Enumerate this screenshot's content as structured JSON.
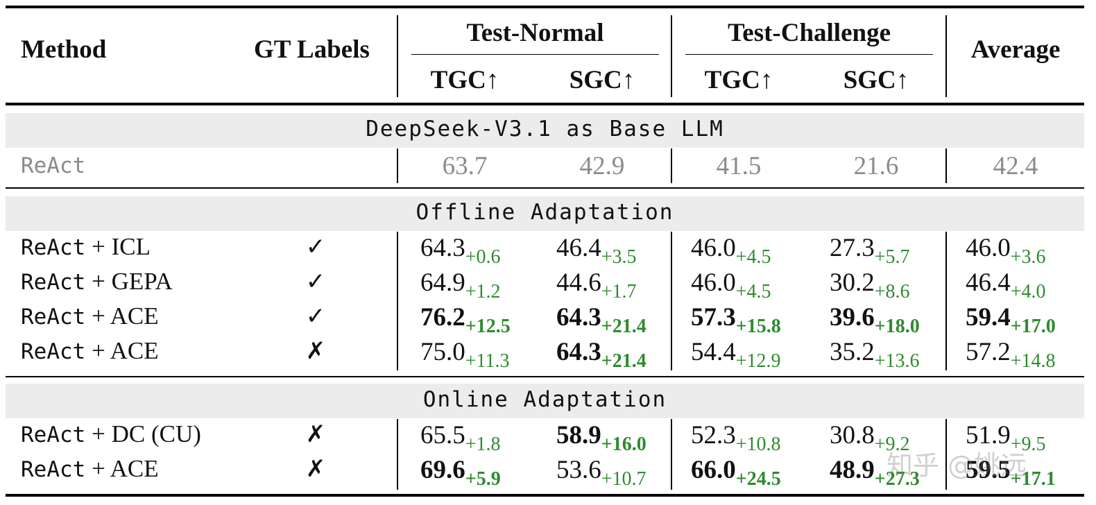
{
  "header": {
    "method": "Method",
    "gt_labels": "GT Labels",
    "test_normal": "Test-Normal",
    "test_challenge": "Test-Challenge",
    "average": "Average",
    "tgc": "TGC↑",
    "sgc": "SGC↑"
  },
  "sections": {
    "base": "DeepSeek-V3.1 as Base LLM",
    "offline": "Offline Adaptation",
    "online": "Online Adaptation"
  },
  "baseline": {
    "method": "ReAct",
    "values": [
      "63.7",
      "42.9",
      "41.5",
      "21.6",
      "42.4"
    ]
  },
  "offline_rows": [
    {
      "method_code": "ReAct",
      "method_rest": " + ICL",
      "gt": "✓",
      "cells": [
        {
          "v": "64.3",
          "d": "+0.6",
          "b": false
        },
        {
          "v": "46.4",
          "d": "+3.5",
          "b": false
        },
        {
          "v": "46.0",
          "d": "+4.5",
          "b": false
        },
        {
          "v": "27.3",
          "d": "+5.7",
          "b": false
        },
        {
          "v": "46.0",
          "d": "+3.6",
          "b": false
        }
      ]
    },
    {
      "method_code": "ReAct",
      "method_rest": " + GEPA",
      "gt": "✓",
      "cells": [
        {
          "v": "64.9",
          "d": "+1.2",
          "b": false
        },
        {
          "v": "44.6",
          "d": "+1.7",
          "b": false
        },
        {
          "v": "46.0",
          "d": "+4.5",
          "b": false
        },
        {
          "v": "30.2",
          "d": "+8.6",
          "b": false
        },
        {
          "v": "46.4",
          "d": "+4.0",
          "b": false
        }
      ]
    },
    {
      "method_code": "ReAct",
      "method_rest": " + ACE",
      "gt": "✓",
      "cells": [
        {
          "v": "76.2",
          "d": "+12.5",
          "b": true
        },
        {
          "v": "64.3",
          "d": "+21.4",
          "b": true
        },
        {
          "v": "57.3",
          "d": "+15.8",
          "b": true
        },
        {
          "v": "39.6",
          "d": "+18.0",
          "b": true
        },
        {
          "v": "59.4",
          "d": "+17.0",
          "b": true
        }
      ]
    },
    {
      "method_code": "ReAct",
      "method_rest": " + ACE",
      "gt": "✗",
      "cells": [
        {
          "v": "75.0",
          "d": "+11.3",
          "b": false
        },
        {
          "v": "64.3",
          "d": "+21.4",
          "b": true
        },
        {
          "v": "54.4",
          "d": "+12.9",
          "b": false
        },
        {
          "v": "35.2",
          "d": "+13.6",
          "b": false
        },
        {
          "v": "57.2",
          "d": "+14.8",
          "b": false
        }
      ]
    }
  ],
  "online_rows": [
    {
      "method_code": "ReAct",
      "method_rest": " + DC (CU)",
      "gt": "✗",
      "cells": [
        {
          "v": "65.5",
          "d": "+1.8",
          "b": false
        },
        {
          "v": "58.9",
          "d": "+16.0",
          "b": true
        },
        {
          "v": "52.3",
          "d": "+10.8",
          "b": false
        },
        {
          "v": "30.8",
          "d": "+9.2",
          "b": false
        },
        {
          "v": "51.9",
          "d": "+9.5",
          "b": false
        }
      ]
    },
    {
      "method_code": "ReAct",
      "method_rest": " + ACE",
      "gt": "✗",
      "cells": [
        {
          "v": "69.6",
          "d": "+5.9",
          "b": true
        },
        {
          "v": "53.6",
          "d": "+10.7",
          "b": false
        },
        {
          "v": "66.0",
          "d": "+24.5",
          "b": true
        },
        {
          "v": "48.9",
          "d": "+27.3",
          "b": true
        },
        {
          "v": "59.5",
          "d": "+17.1",
          "b": true
        }
      ]
    }
  ],
  "watermark": "知乎 @姚远"
}
